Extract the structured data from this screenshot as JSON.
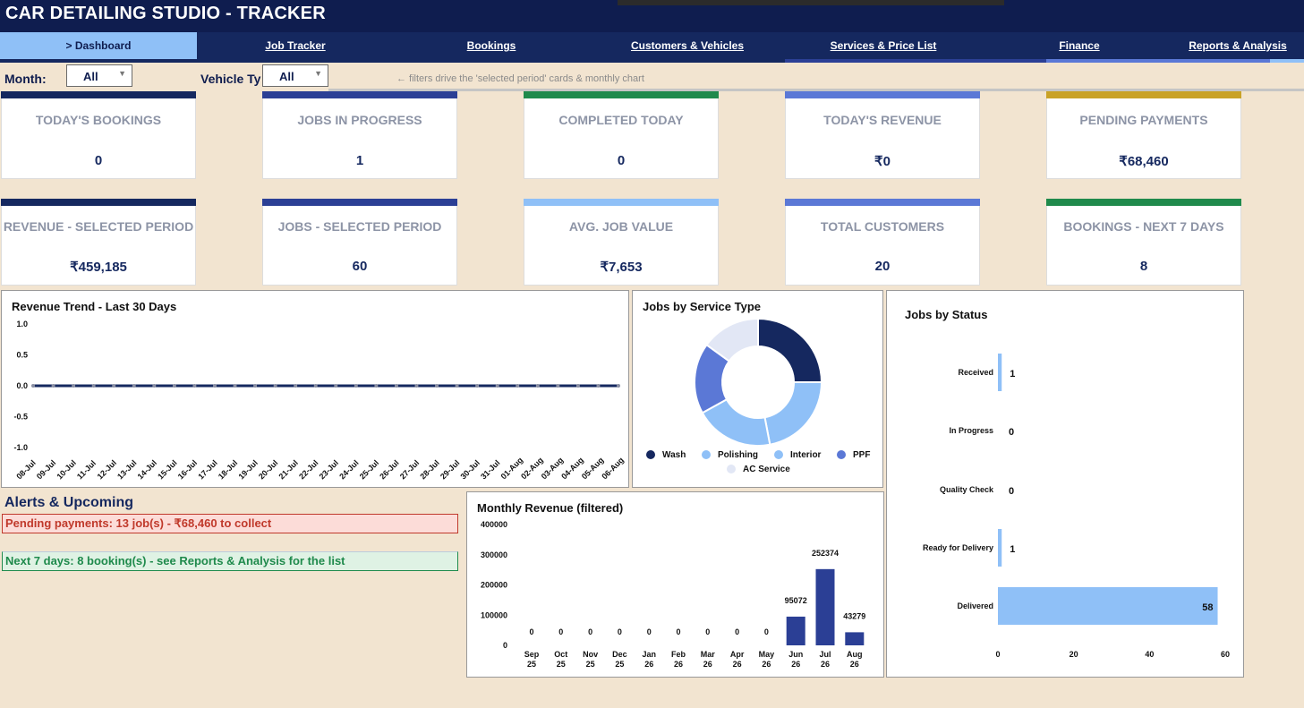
{
  "app": {
    "title": "CAR DETAILING STUDIO - TRACKER"
  },
  "nav": {
    "tabs": [
      {
        "label": "> Dashboard",
        "active": true
      },
      {
        "label": "Job Tracker"
      },
      {
        "label": "Bookings"
      },
      {
        "label": "Customers & Vehicles"
      },
      {
        "label": "Services & Price List"
      },
      {
        "label": "Finance"
      },
      {
        "label": "Reports & Analysis"
      }
    ]
  },
  "filters": {
    "month_label": "Month:",
    "month_value": "All",
    "vehicle_label": "Vehicle Ty",
    "vehicle_value": "All",
    "hint": "← filters drive the 'selected period' cards & monthly chart"
  },
  "kpi_row1": [
    {
      "title": "TODAY'S BOOKINGS",
      "value": "0",
      "color": "#15285f"
    },
    {
      "title": "JOBS IN PROGRESS",
      "value": "1",
      "color": "#2b3f95"
    },
    {
      "title": "COMPLETED TODAY",
      "value": "0",
      "color": "#1f8a4c"
    },
    {
      "title": "TODAY'S REVENUE",
      "value": "₹0",
      "color": "#5b78d6"
    },
    {
      "title": "PENDING PAYMENTS",
      "value": "₹68,460",
      "color": "#c9a227"
    }
  ],
  "kpi_row2": [
    {
      "title": "REVENUE - SELECTED PERIOD",
      "value": "₹459,185",
      "color": "#15285f"
    },
    {
      "title": "JOBS - SELECTED PERIOD",
      "value": "60",
      "color": "#2b3f95"
    },
    {
      "title": "AVG. JOB VALUE",
      "value": "₹7,653",
      "color": "#8fc0f7"
    },
    {
      "title": "TOTAL CUSTOMERS",
      "value": "20",
      "color": "#5b78d6"
    },
    {
      "title": "BOOKINGS - NEXT 7 DAYS",
      "value": "8",
      "color": "#1f8a4c"
    }
  ],
  "alerts": {
    "heading": "Alerts & Upcoming",
    "pending": "Pending payments: 13 job(s)  -  ₹68,460 to collect",
    "upcoming": "Next 7 days: 8 booking(s) - see Reports & Analysis for the list"
  },
  "chart_data": [
    {
      "type": "line",
      "title": "Revenue Trend - Last 30 Days",
      "x": [
        "08-Jul",
        "09-Jul",
        "10-Jul",
        "11-Jul",
        "12-Jul",
        "13-Jul",
        "14-Jul",
        "15-Jul",
        "16-Jul",
        "17-Jul",
        "18-Jul",
        "19-Jul",
        "20-Jul",
        "21-Jul",
        "22-Jul",
        "23-Jul",
        "24-Jul",
        "25-Jul",
        "26-Jul",
        "27-Jul",
        "28-Jul",
        "29-Jul",
        "30-Jul",
        "31-Jul",
        "01-Aug",
        "02-Aug",
        "03-Aug",
        "04-Aug",
        "05-Aug",
        "06-Aug"
      ],
      "series": [
        {
          "values": [
            0,
            0,
            0,
            0,
            0,
            0,
            0,
            0,
            0,
            0,
            0,
            0,
            0,
            0,
            0,
            0,
            0,
            0,
            0,
            0,
            0,
            0,
            0,
            0,
            0,
            0,
            0,
            0,
            0,
            0
          ],
          "color": "#15285f"
        }
      ],
      "ylim": [
        -1.0,
        1.0
      ],
      "yticks": [
        "1.0",
        "0.5",
        "0.0",
        "-0.5",
        "-1.0"
      ]
    },
    {
      "type": "pie",
      "title": "Jobs by Service Type",
      "labels": [
        "Wash",
        "Interior",
        "Polishing",
        "PPF",
        "AC Service"
      ],
      "values": [
        25,
        22,
        20,
        18,
        15
      ],
      "colors": [
        "#15285f",
        "#8fc0f7",
        "#8fc0f7",
        "#5b78d6",
        "#e2e7f5"
      ],
      "legend": [
        {
          "label": "Wash",
          "color": "#15285f"
        },
        {
          "label": "Polishing",
          "color": "#8fc0f7"
        },
        {
          "label": "Interior",
          "color": "#8fc0f7"
        },
        {
          "label": "PPF",
          "color": "#5b78d6"
        },
        {
          "label": "AC Service",
          "color": "#e2e7f5"
        }
      ],
      "legend_position": "bottom"
    },
    {
      "type": "bar",
      "orientation": "horizontal",
      "title": "Jobs by Status",
      "categories": [
        "Received",
        "In Progress",
        "Quality Check",
        "Ready for Delivery",
        "Delivered"
      ],
      "values": [
        1,
        0,
        0,
        1,
        58
      ],
      "xlim": [
        0,
        60
      ],
      "xticks": [
        "0",
        "20",
        "40",
        "60"
      ],
      "color": "#8fc0f7"
    },
    {
      "type": "bar",
      "title": "Monthly Revenue (filtered)",
      "categories": [
        [
          "Sep",
          "25"
        ],
        [
          "Oct",
          "25"
        ],
        [
          "Nov",
          "25"
        ],
        [
          "Dec",
          "25"
        ],
        [
          "Jan",
          "26"
        ],
        [
          "Feb",
          "26"
        ],
        [
          "Mar",
          "26"
        ],
        [
          "Apr",
          "26"
        ],
        [
          "May",
          "26"
        ],
        [
          "Jun",
          "26"
        ],
        [
          "Jul",
          "26"
        ],
        [
          "Aug",
          "26"
        ]
      ],
      "values": [
        0,
        0,
        0,
        0,
        0,
        0,
        0,
        0,
        0,
        95072,
        252374,
        43279
      ],
      "ylim": [
        0,
        400000
      ],
      "yticks": [
        "400000",
        "300000",
        "200000",
        "100000",
        "0"
      ],
      "color": "#2b3f95"
    }
  ]
}
